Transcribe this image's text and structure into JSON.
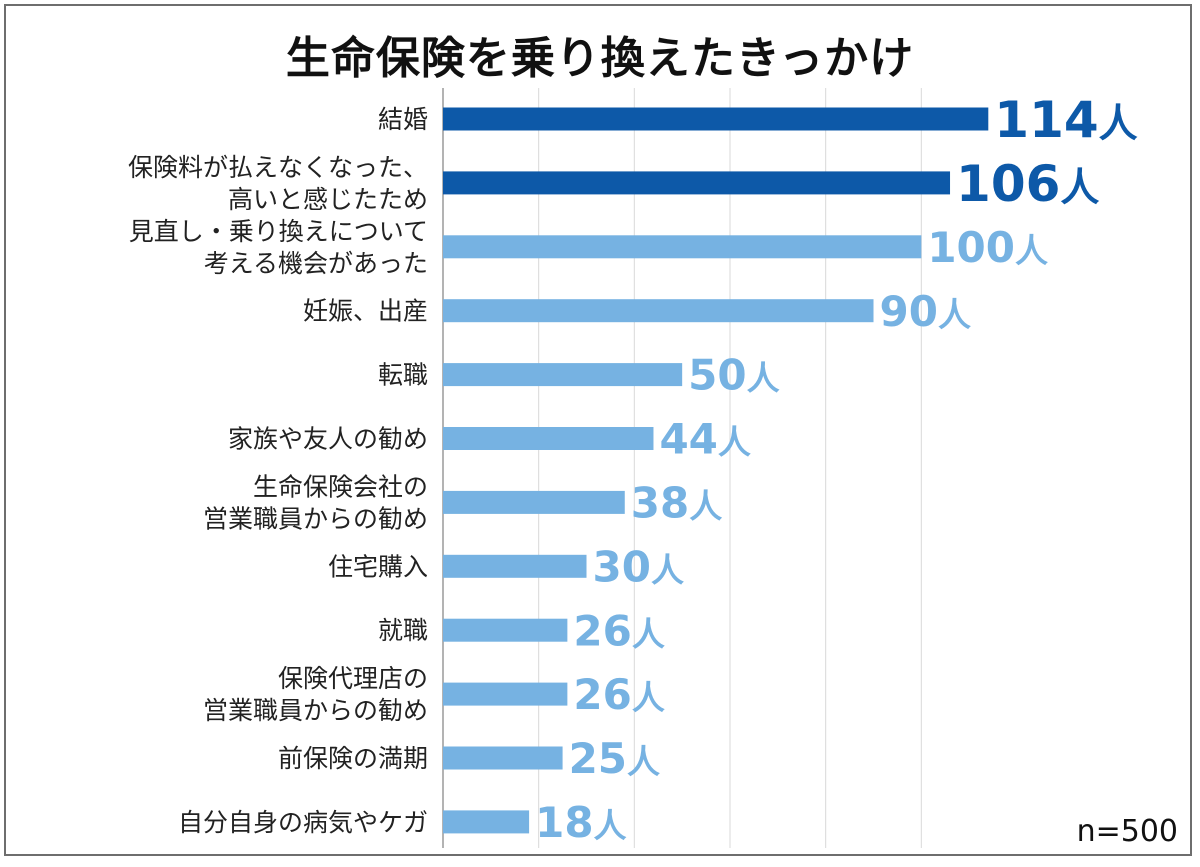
{
  "chart_data": {
    "type": "bar",
    "orientation": "horizontal",
    "title": "生命保険を乗り換えたきっかけ",
    "categories": [
      [
        "結婚"
      ],
      [
        "保険料が払えなくなった、",
        "高いと感じたため"
      ],
      [
        "見直し・乗り換えについて",
        "考える機会があった"
      ],
      [
        "妊娠、出産"
      ],
      [
        "転職"
      ],
      [
        "家族や友人の勧め"
      ],
      [
        "生命保険会社の",
        "営業職員からの勧め"
      ],
      [
        "住宅購入"
      ],
      [
        "就職"
      ],
      [
        "保険代理店の",
        "営業職員からの勧め"
      ],
      [
        "前保険の満期"
      ],
      [
        "自分自身の病気やケガ"
      ]
    ],
    "values": [
      114,
      106,
      100,
      90,
      50,
      44,
      38,
      30,
      26,
      26,
      25,
      18
    ],
    "value_labels": [
      "114人",
      "106人",
      "100人",
      "90人",
      "50人",
      "44人",
      "38人",
      "30人",
      "26人",
      "26人",
      "25人",
      "18人"
    ],
    "xlim": [
      0,
      120
    ],
    "grid_step": 20,
    "grid": true,
    "highlight_top": 2,
    "colors": {
      "highlight_bar": "#0d59a8",
      "highlight_label": "#0d59a8",
      "normal_bar": "#76b2e2",
      "normal_label": "#76b2e2",
      "grid": "#d9d9d9"
    }
  },
  "note": "n=500"
}
